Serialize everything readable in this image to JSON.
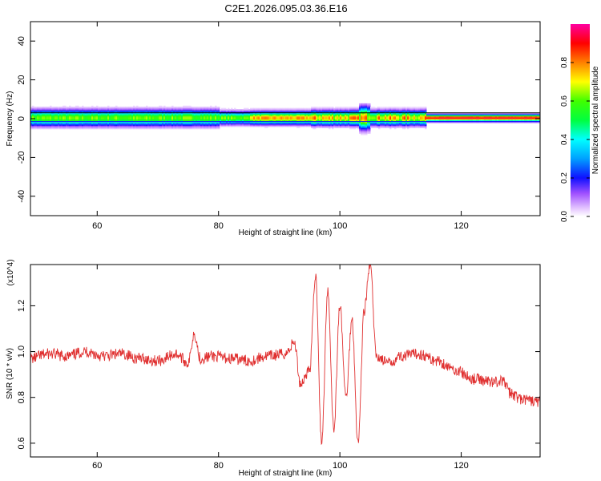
{
  "title": "C2E1.2026.095.03.36.E16",
  "chart_data": [
    {
      "type": "heatmap",
      "xlabel": "Height of straight line (km)",
      "ylabel": "Frequency (Hz)",
      "xlim": [
        49,
        133
      ],
      "ylim": [
        -50,
        50
      ],
      "xticks": [
        60,
        80,
        100,
        120
      ],
      "yticks": [
        -40,
        -20,
        0,
        20,
        40
      ],
      "colorbar": {
        "label": "Normalized spectral amplitude",
        "ticks": [
          "0.0",
          "0.2",
          "0.4",
          "0.6",
          "0.8"
        ],
        "range": [
          0,
          1
        ]
      }
    },
    {
      "type": "line",
      "xlabel": "Height of straight line (km)",
      "ylabel": "SNR (10 * v/v)",
      "yscale_label": "(x10^4)",
      "xlim": [
        49,
        133
      ],
      "ylim": [
        0.54,
        1.38
      ],
      "xticks": [
        60,
        80,
        100,
        120
      ],
      "yticks": [
        0.6,
        0.8,
        1.0,
        1.2
      ],
      "series": [
        {
          "color": "#e03030",
          "x": [
            49,
            52,
            55,
            58,
            61,
            64,
            67,
            70,
            73,
            75,
            76,
            77,
            79,
            82,
            85,
            88,
            91,
            92.5,
            93.5,
            95,
            96,
            97,
            98,
            99,
            100,
            101,
            102,
            103,
            104,
            105,
            106,
            108,
            110,
            113,
            116,
            119,
            122,
            125,
            127,
            128,
            130,
            133
          ],
          "y": [
            0.97,
            0.99,
            0.98,
            1.0,
            0.98,
            0.99,
            0.97,
            0.96,
            0.99,
            0.95,
            1.08,
            0.97,
            0.98,
            0.97,
            0.96,
            0.98,
            0.99,
            1.04,
            0.86,
            0.92,
            1.33,
            0.6,
            1.27,
            0.66,
            1.2,
            0.8,
            1.14,
            0.6,
            1.18,
            1.38,
            0.98,
            0.95,
            0.98,
            0.99,
            0.96,
            0.92,
            0.88,
            0.87,
            0.87,
            0.82,
            0.79,
            0.78
          ]
        }
      ]
    }
  ]
}
